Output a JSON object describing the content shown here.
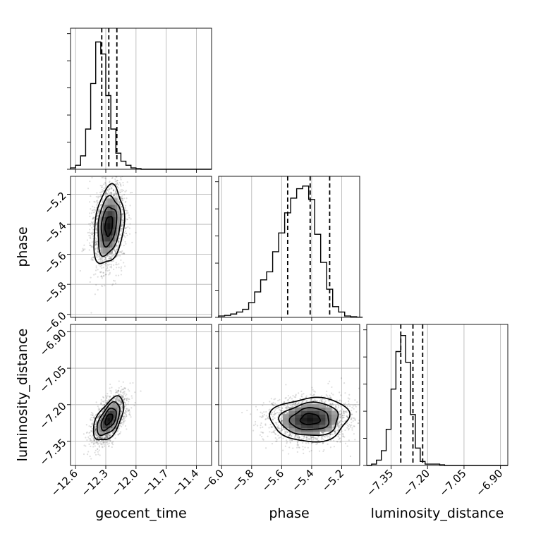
{
  "chart_data": {
    "type": "corner",
    "parameters": [
      {
        "key": "geocent_time",
        "label": "geocent_time",
        "range": [
          -12.65,
          -11.25
        ],
        "ticks": [
          -12.6,
          -12.3,
          -12.0,
          -11.7,
          -11.4
        ],
        "tick_labels": [
          "−12.6",
          "−12.3",
          "−12.0",
          "−11.7",
          "−11.4"
        ],
        "quantiles": [
          -12.34,
          -12.27,
          -12.19
        ],
        "mean": -12.27,
        "sd": 0.075
      },
      {
        "key": "phase",
        "label": "phase",
        "range": [
          -6.02,
          -5.08
        ],
        "ticks": [
          -6.0,
          -5.8,
          -5.6,
          -5.4,
          -5.2
        ],
        "tick_labels": [
          "−6.0",
          "−5.8",
          "−5.6",
          "−5.4",
          "−5.2"
        ],
        "quantiles": [
          -5.56,
          -5.41,
          -5.28
        ],
        "mean": -5.41,
        "sd": 0.13
      },
      {
        "key": "luminosity_distance",
        "label": "luminosity_distance",
        "range": [
          -7.45,
          -6.87
        ],
        "ticks": [
          -7.35,
          -7.2,
          -7.05,
          -6.9
        ],
        "tick_labels": [
          "−7.35",
          "−7.20",
          "−7.05",
          "−6.90"
        ],
        "quantiles": [
          -7.31,
          -7.26,
          -7.22
        ],
        "mean": -7.26,
        "sd": 0.045
      }
    ],
    "histograms": {
      "geocent_time": {
        "bin_width": 0.05,
        "start": -12.65,
        "counts": [
          0.01,
          0.03,
          0.1,
          0.3,
          0.64,
          0.95,
          0.86,
          0.55,
          0.3,
          0.12,
          0.06,
          0.03,
          0.01,
          0.005,
          0,
          0,
          0,
          0,
          0,
          0,
          0,
          0,
          0,
          0,
          0,
          0,
          0,
          0
        ]
      },
      "phase": {
        "bin_width": 0.04,
        "start": -6.02,
        "counts": [
          0.01,
          0.015,
          0.025,
          0.04,
          0.06,
          0.11,
          0.19,
          0.28,
          0.34,
          0.49,
          0.63,
          0.78,
          0.89,
          0.96,
          0.98,
          0.88,
          0.62,
          0.41,
          0.21,
          0.08,
          0.04,
          0.01,
          0.005,
          0.001
        ]
      },
      "luminosity_distance": {
        "bin_width": 0.02,
        "start": -7.45,
        "counts": [
          0,
          0.01,
          0.04,
          0.11,
          0.27,
          0.57,
          0.85,
          0.97,
          0.77,
          0.38,
          0.13,
          0.03,
          0.01,
          0.01,
          0.01,
          0.005,
          0,
          0,
          0,
          0,
          0,
          0,
          0,
          0,
          0,
          0,
          0,
          0,
          0
        ]
      }
    },
    "correlations": {
      "phase|geocent_time": 0.25,
      "luminosity_distance|geocent_time": 0.55,
      "luminosity_distance|phase": 0.05
    },
    "contour_levels_sigma": [
      0.5,
      1.0,
      1.5,
      2.0
    ],
    "grid": true
  }
}
